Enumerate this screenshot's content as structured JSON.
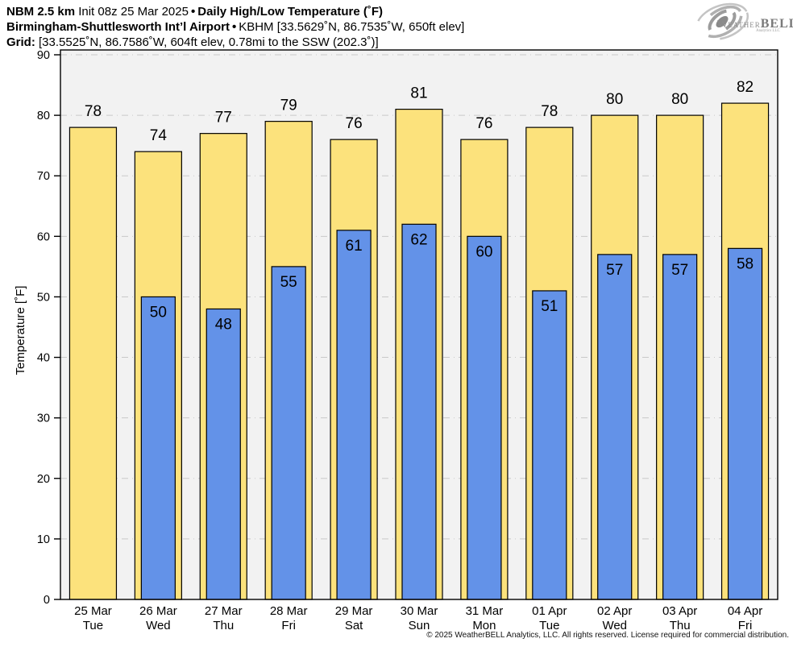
{
  "header": {
    "model": "NBM 2.5 km",
    "init": "Init 08z 25 Mar 2025",
    "bullet": "•",
    "product": "Daily High/Low Temperature (˚F)",
    "station": "Birmingham-Shuttlesworth Int’l Airport",
    "station_meta": "KBHM [33.5629˚N, 86.7535˚W, 650ft elev]",
    "grid_label": "Grid:",
    "grid_meta": "[33.5525˚N, 86.7586˚W, 604ft elev, 0.78mi to the SSW (202.3˚)]"
  },
  "logo": {
    "word_w": "W",
    "word_eather": "EATHER",
    "word_bell": "BELL",
    "subtext": "Analytics LLC"
  },
  "footer": {
    "copyright": "© 2025 WeatherBELL Analytics, LLC. All rights reserved. License required for commercial distribution."
  },
  "chart_data": {
    "type": "bar",
    "title": "Daily High/Low Temperature (˚F)",
    "xlabel": "",
    "ylabel": "Temperature [˚F]",
    "ylim": [
      0,
      90
    ],
    "yticks": [
      0,
      10,
      20,
      30,
      40,
      50,
      60,
      70,
      80,
      90
    ],
    "grid": "horizontal dash-dot",
    "legend_position": "none",
    "plot_background": "#f2f2f2",
    "gridline_color": "#c9c9c9",
    "categories": [
      {
        "date": "25 Mar",
        "day": "Tue"
      },
      {
        "date": "26 Mar",
        "day": "Wed"
      },
      {
        "date": "27 Mar",
        "day": "Thu"
      },
      {
        "date": "28 Mar",
        "day": "Fri"
      },
      {
        "date": "29 Mar",
        "day": "Sat"
      },
      {
        "date": "30 Mar",
        "day": "Sun"
      },
      {
        "date": "31 Mar",
        "day": "Mon"
      },
      {
        "date": "01 Apr",
        "day": "Tue"
      },
      {
        "date": "02 Apr",
        "day": "Wed"
      },
      {
        "date": "03 Apr",
        "day": "Thu"
      },
      {
        "date": "04 Apr",
        "day": "Fri"
      }
    ],
    "series": [
      {
        "name": "Daily High",
        "color": "#FCE27C",
        "values": [
          78,
          74,
          77,
          79,
          76,
          81,
          76,
          78,
          80,
          80,
          82
        ]
      },
      {
        "name": "Daily Low",
        "color": "#6392E8",
        "values": [
          null,
          50,
          48,
          55,
          61,
          62,
          60,
          51,
          57,
          57,
          58
        ]
      }
    ]
  }
}
